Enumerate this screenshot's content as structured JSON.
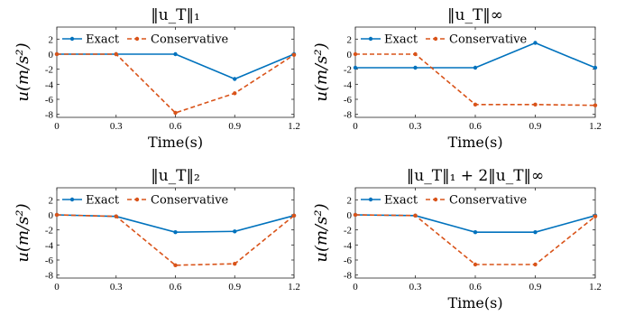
{
  "chart_data": [
    {
      "type": "line",
      "title": "‖u_T‖₁",
      "xlabel": "Time(s)",
      "ylabel": "u(m/s²)",
      "x": [
        0,
        0.3,
        0.6,
        0.9,
        1.2
      ],
      "xlim": [
        0,
        1.2
      ],
      "ylim": [
        -8.4,
        3.6
      ],
      "xticks": [
        "0",
        "0.3",
        "0.6",
        "0.9",
        "1.2"
      ],
      "yticks": [
        2,
        0,
        -2,
        -4,
        -6,
        -8
      ],
      "legend": "top-left",
      "series": [
        {
          "name": "Exact",
          "values": [
            0,
            0,
            0,
            -3.3,
            0
          ],
          "color": "#0072bd",
          "dash": "solid"
        },
        {
          "name": "Conservative",
          "values": [
            0,
            0,
            -7.8,
            -5.2,
            -0.1
          ],
          "color": "#d95319",
          "dash": "dashed"
        }
      ]
    },
    {
      "type": "line",
      "title": "‖u_T‖∞",
      "xlabel": "Time(s)",
      "ylabel": "u(m/s²)",
      "x": [
        0,
        0.3,
        0.6,
        0.9,
        1.2
      ],
      "xlim": [
        0,
        1.2
      ],
      "ylim": [
        -8.4,
        3.6
      ],
      "xticks": [
        "0",
        "0.3",
        "0.6",
        "0.9",
        "1.2"
      ],
      "yticks": [
        2,
        0,
        -2,
        -4,
        -6,
        -8
      ],
      "legend": "top-left",
      "series": [
        {
          "name": "Exact",
          "values": [
            -1.8,
            -1.8,
            -1.8,
            1.5,
            -1.8
          ],
          "color": "#0072bd",
          "dash": "solid"
        },
        {
          "name": "Conservative",
          "values": [
            0,
            0,
            -6.7,
            -6.7,
            -6.8
          ],
          "color": "#d95319",
          "dash": "dashed"
        }
      ]
    },
    {
      "type": "line",
      "title": "‖u_T‖₂",
      "xlabel": "",
      "ylabel": "u(m/s²)",
      "x": [
        0,
        0.3,
        0.6,
        0.9,
        1.2
      ],
      "xlim": [
        0,
        1.2
      ],
      "ylim": [
        -8.4,
        3.6
      ],
      "xticks": [
        "0",
        "0.3",
        "0.6",
        "0.9",
        "1.2"
      ],
      "yticks": [
        2,
        0,
        -2,
        -4,
        -6,
        -8
      ],
      "legend": "top-left",
      "series": [
        {
          "name": "Exact",
          "values": [
            0,
            -0.2,
            -2.3,
            -2.2,
            -0.1
          ],
          "color": "#0072bd",
          "dash": "solid"
        },
        {
          "name": "Conservative",
          "values": [
            0,
            -0.2,
            -6.7,
            -6.5,
            -0.1
          ],
          "color": "#d95319",
          "dash": "dashed"
        }
      ]
    },
    {
      "type": "line",
      "title": "‖u_T‖₁ + 2‖u_T‖∞",
      "xlabel": "Time(s)",
      "ylabel": "u(m/s²)",
      "x": [
        0,
        0.3,
        0.6,
        0.9,
        1.2
      ],
      "xlim": [
        0,
        1.2
      ],
      "ylim": [
        -8.4,
        3.6
      ],
      "xticks": [
        "0",
        "0.3",
        "0.6",
        "0.9",
        "1.2"
      ],
      "yticks": [
        2,
        0,
        -2,
        -4,
        -6,
        -8
      ],
      "legend": "top-left",
      "series": [
        {
          "name": "Exact",
          "values": [
            0,
            -0.1,
            -2.3,
            -2.3,
            -0.1
          ],
          "color": "#0072bd",
          "dash": "solid"
        },
        {
          "name": "Conservative",
          "values": [
            0,
            -0.1,
            -6.6,
            -6.6,
            -0.2
          ],
          "color": "#d95319",
          "dash": "dashed"
        }
      ]
    }
  ]
}
